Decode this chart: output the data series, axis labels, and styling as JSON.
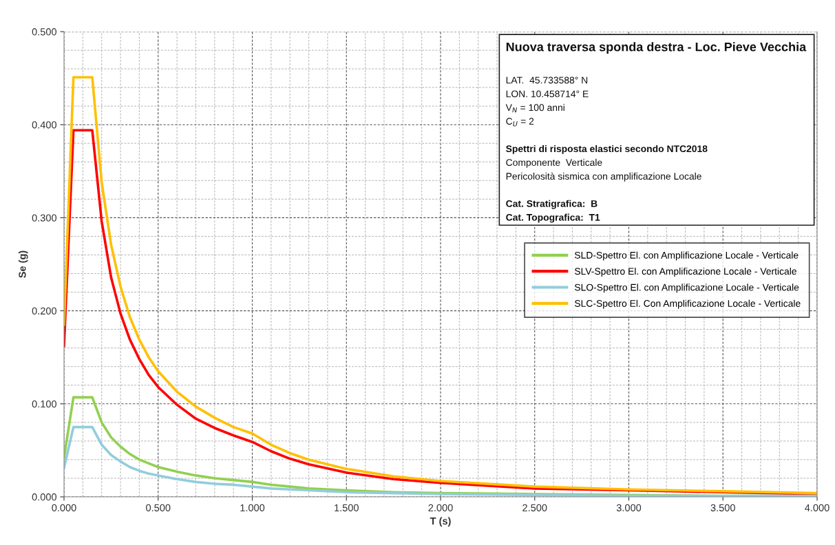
{
  "chart_data": {
    "type": "line",
    "xlabel": "T (s)",
    "ylabel": "Se (g)",
    "x": [
      0,
      0.05,
      0.15,
      0.2,
      0.25,
      0.3,
      0.35,
      0.4,
      0.45,
      0.5,
      0.6,
      0.7,
      0.8,
      0.9,
      1.0,
      1.1,
      1.2,
      1.3,
      1.5,
      1.75,
      2.0,
      2.5,
      3.0,
      3.5,
      4.0
    ],
    "series": [
      {
        "name": "SLD-Spettro El. con Amplificazione Locale - Verticale",
        "color": "#92d050",
        "values": [
          0.042,
          0.107,
          0.107,
          0.08,
          0.064,
          0.054,
          0.046,
          0.04,
          0.036,
          0.032,
          0.027,
          0.023,
          0.02,
          0.018,
          0.016,
          0.013,
          0.011,
          0.009,
          0.007,
          0.005,
          0.004,
          0.003,
          0.002,
          0.001,
          0.001
        ]
      },
      {
        "name": "SLV-Spettro El. con Amplificazione Locale - Verticale",
        "color": "#ff0000",
        "values": [
          0.162,
          0.394,
          0.394,
          0.296,
          0.236,
          0.197,
          0.169,
          0.148,
          0.131,
          0.118,
          0.099,
          0.084,
          0.074,
          0.066,
          0.059,
          0.049,
          0.041,
          0.035,
          0.026,
          0.019,
          0.015,
          0.009,
          0.007,
          0.005,
          0.003
        ]
      },
      {
        "name": "SLO-Spettro El. con Amplificazione Locale - Verticale",
        "color": "#92cddc",
        "values": [
          0.031,
          0.075,
          0.075,
          0.056,
          0.045,
          0.038,
          0.032,
          0.028,
          0.025,
          0.023,
          0.019,
          0.016,
          0.014,
          0.013,
          0.011,
          0.009,
          0.008,
          0.007,
          0.005,
          0.004,
          0.003,
          0.002,
          0.001,
          0.001,
          0.001
        ]
      },
      {
        "name": "SLC-Spettro El. Con Amplificazione Locale - Verticale",
        "color": "#ffc000",
        "values": [
          0.185,
          0.451,
          0.451,
          0.338,
          0.271,
          0.226,
          0.193,
          0.169,
          0.15,
          0.135,
          0.113,
          0.097,
          0.085,
          0.075,
          0.068,
          0.056,
          0.047,
          0.04,
          0.03,
          0.022,
          0.017,
          0.011,
          0.008,
          0.006,
          0.004
        ]
      }
    ],
    "xlim": [
      0,
      4.0
    ],
    "ylim": [
      0,
      0.5
    ],
    "xticks": [
      {
        "value": 0,
        "label": "0.000"
      },
      {
        "value": 0.5,
        "label": "0.500"
      },
      {
        "value": 1.0,
        "label": "1.000"
      },
      {
        "value": 1.5,
        "label": "1.500"
      },
      {
        "value": 2.0,
        "label": "2.000"
      },
      {
        "value": 2.5,
        "label": "2.500"
      },
      {
        "value": 3.0,
        "label": "3.000"
      },
      {
        "value": 3.5,
        "label": "3.500"
      },
      {
        "value": 4.0,
        "label": "4.000"
      }
    ],
    "yticks": [
      {
        "value": 0,
        "label": "0.000"
      },
      {
        "value": 0.1,
        "label": "0.100"
      },
      {
        "value": 0.2,
        "label": "0.200"
      },
      {
        "value": 0.3,
        "label": "0.300"
      },
      {
        "value": 0.4,
        "label": "0.400"
      },
      {
        "value": 0.5,
        "label": "0.500"
      }
    ],
    "grid": true,
    "legend": "right",
    "marker": "none",
    "line_style": "solid",
    "annotations": [
      "Nuova traversa sponda destra - Loc. Pieve Vecchia",
      "LAT.  45.733588° N",
      "LON. 10.458714° E",
      "V$_{N}$ = 100 anni",
      "C$_{U}$ = 2",
      "Spettri di risposta elastici secondo NTC2018",
      "Componente  Verticale",
      "Pericolosità sismica con amplificazione Locale",
      "Cat. Stratigrafica:  B",
      "Cat. Topografica:  T1"
    ]
  }
}
